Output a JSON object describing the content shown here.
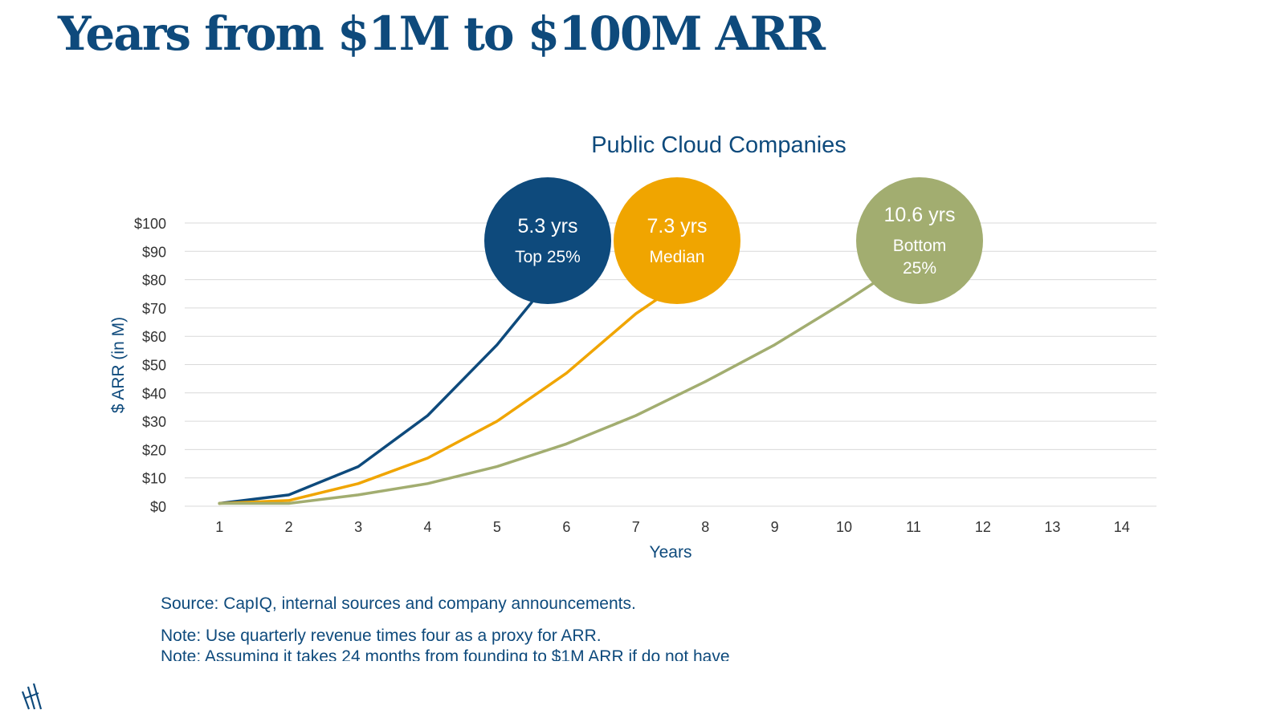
{
  "page": {
    "title": "Years from $1M to $100M ARR",
    "source": "Source: CapIQ, internal sources and company announcements.",
    "notes": [
      "Note: Use quarterly revenue times four as a proxy for ARR.",
      "Note: Assuming it takes 24 months from founding to $1M ARR if do not have"
    ]
  },
  "colors": {
    "title": "#0e4a7c",
    "top": "#0e4a7c",
    "median": "#f0a500",
    "bottom": "#a2ad70",
    "grid": "#d9d9d9",
    "tick": "#333333"
  },
  "icons": {
    "logo": "slanted-lines-logo-icon"
  },
  "chart_data": {
    "type": "line",
    "title": "Public Cloud Companies",
    "xlabel": "Years",
    "ylabel": "$ ARR (in M)",
    "x": [
      1,
      2,
      3,
      4,
      5,
      6,
      7,
      8,
      9,
      10,
      11,
      12,
      13,
      14
    ],
    "xlim": [
      0.5,
      14.5
    ],
    "ylim": [
      0,
      100
    ],
    "yticks": [
      0,
      10,
      20,
      30,
      40,
      50,
      60,
      70,
      80,
      90,
      100
    ],
    "ytick_labels": [
      "$0",
      "$10",
      "$20",
      "$30",
      "$40",
      "$50",
      "$60",
      "$70",
      "$80",
      "$90",
      "$100"
    ],
    "grid": true,
    "series": [
      {
        "key": "top",
        "color": "#0e4a7c",
        "points": [
          [
            1,
            1
          ],
          [
            2,
            4
          ],
          [
            3,
            14
          ],
          [
            4,
            32
          ],
          [
            5,
            57
          ],
          [
            5.5,
            72
          ]
        ]
      },
      {
        "key": "median",
        "color": "#f0a500",
        "points": [
          [
            1,
            1
          ],
          [
            2,
            2
          ],
          [
            3,
            8
          ],
          [
            4,
            17
          ],
          [
            5,
            30
          ],
          [
            6,
            47
          ],
          [
            7,
            68
          ],
          [
            7.3,
            73
          ]
        ]
      },
      {
        "key": "bottom",
        "color": "#a2ad70",
        "points": [
          [
            1,
            1
          ],
          [
            2,
            1
          ],
          [
            3,
            4
          ],
          [
            4,
            8
          ],
          [
            5,
            14
          ],
          [
            6,
            22
          ],
          [
            7,
            32
          ],
          [
            8,
            44
          ],
          [
            9,
            57
          ],
          [
            10,
            72
          ],
          [
            10.5,
            80
          ]
        ]
      }
    ],
    "annotations": [
      {
        "key": "top",
        "color": "#0e4a7c",
        "value": "5.3 yrs",
        "label": [
          "Top 25%"
        ]
      },
      {
        "key": "median",
        "color": "#f0a500",
        "value": "7.3 yrs",
        "label": [
          "Median"
        ]
      },
      {
        "key": "bottom",
        "color": "#a2ad70",
        "value": "10.6 yrs",
        "label": [
          "Bottom",
          "25%"
        ]
      }
    ]
  }
}
